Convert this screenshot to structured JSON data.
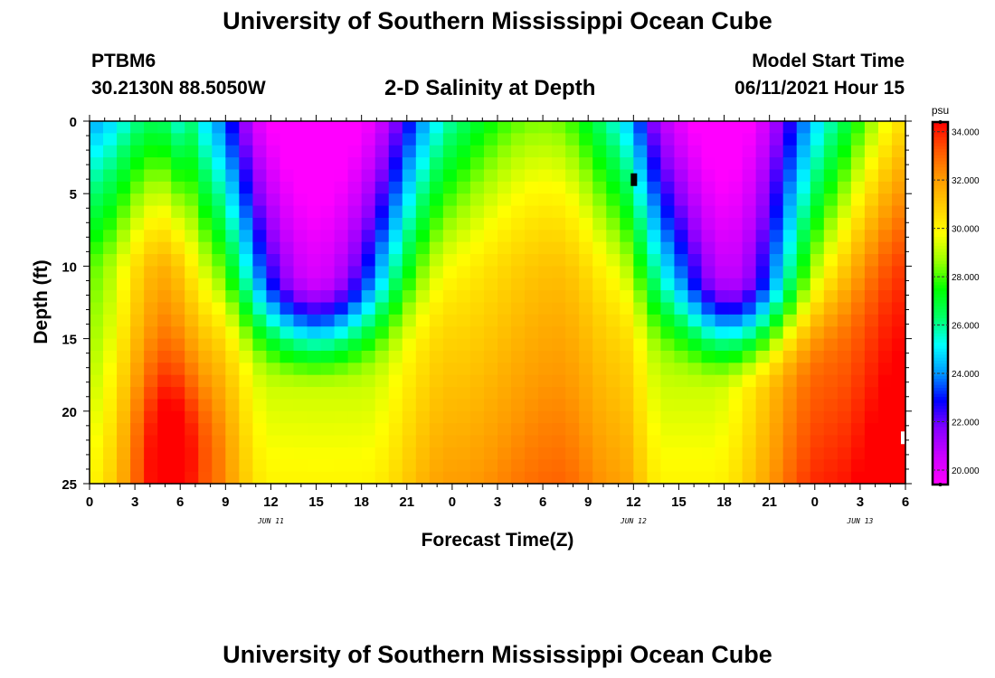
{
  "header": {
    "title": "University of Southern Mississippi Ocean Cube",
    "station": "PTBM6",
    "coordinates": "30.2130N  88.5050W",
    "plot_title": "2-D Salinity at Depth",
    "model_start_label": "Model Start Time",
    "model_start_value": "06/11/2021 Hour 15"
  },
  "footer": {
    "title": "University of Southern Mississippi Ocean Cube"
  },
  "chart_data": {
    "type": "heatmap",
    "title": "2-D Salinity at Depth",
    "xlabel": "Forecast Time(Z)",
    "ylabel": "Depth (ft)",
    "x_tick_labels": [
      "0",
      "3",
      "6",
      "9",
      "12",
      "15",
      "18",
      "21",
      "0",
      "3",
      "6",
      "9",
      "12",
      "15",
      "18",
      "21",
      "0",
      "3",
      "6"
    ],
    "date_labels": [
      {
        "label": "JUN 11",
        "at_tick": 4
      },
      {
        "label": "JUN 12",
        "at_tick": 12
      },
      {
        "label": "JUN 13",
        "at_tick": 17
      }
    ],
    "y_ticks": [
      0,
      5,
      10,
      15,
      20,
      25
    ],
    "ylim": [
      0,
      25
    ],
    "y_inverted": true,
    "colorbar": {
      "unit": "psu",
      "min": 19.4,
      "max": 34.4,
      "tick_values": [
        20,
        22,
        24,
        26,
        28,
        30,
        32,
        34
      ],
      "tick_labels": [
        "20.000",
        "22.000",
        "24.000",
        "26.000",
        "28.000",
        "30.000",
        "32.000",
        "34.000"
      ],
      "colors": [
        "#ff00ff",
        "#cc00ff",
        "#8800ff",
        "#0000ff",
        "#0099ff",
        "#00ffff",
        "#00ff66",
        "#00ff00",
        "#99ff00",
        "#ffff00",
        "#ffcc00",
        "#ff9900",
        "#ff5500",
        "#ff0000"
      ]
    }
  }
}
